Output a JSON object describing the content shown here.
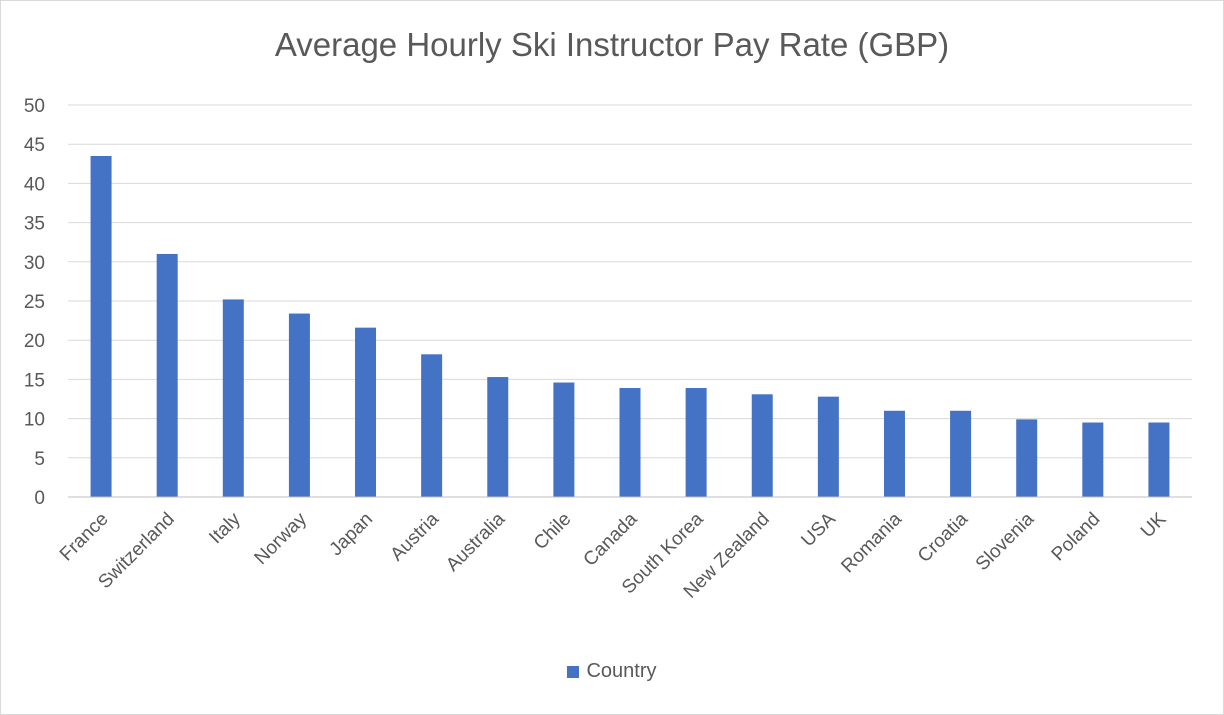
{
  "chart_data": {
    "type": "bar",
    "title": "Average Hourly Ski Instructor Pay Rate (GBP)",
    "xlabel": "",
    "ylabel": "",
    "ylim": [
      0,
      50
    ],
    "yticks": [
      "0",
      "5",
      "10",
      "15",
      "20",
      "25",
      "30",
      "35",
      "40",
      "45",
      "50"
    ],
    "grid": true,
    "legend_position": "bottom",
    "categories": [
      "France",
      "Switzerland",
      "Italy",
      "Norway",
      "Japan",
      "Austria",
      "Australia",
      "Chile",
      "Canada",
      "South Korea",
      "New Zealand",
      "USA",
      "Romania",
      "Croatia",
      "Slovenia",
      "Poland",
      "UK"
    ],
    "series": [
      {
        "name": "Country",
        "color": "#4472c4",
        "values": [
          43.5,
          31,
          25.2,
          23.4,
          21.6,
          18.2,
          15.3,
          14.6,
          13.9,
          13.9,
          13.1,
          12.8,
          11,
          11,
          9.9,
          9.5,
          9.5
        ]
      }
    ]
  }
}
